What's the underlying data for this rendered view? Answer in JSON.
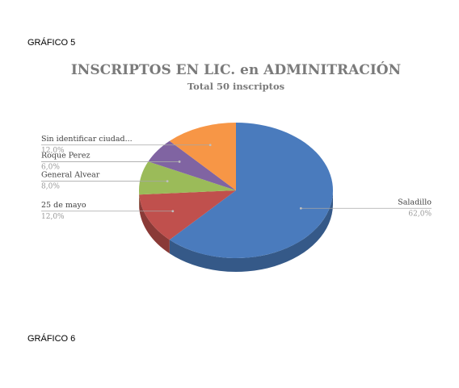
{
  "headings": {
    "grafico5": "GRÁFICO 5",
    "grafico6": "GRÁFICO 6"
  },
  "chart_data": {
    "type": "pie",
    "title": "INSCRIPTOS EN LIC. en ADMINITRACIÓN",
    "subtitle": "Total 50 inscriptos",
    "slices": [
      {
        "label": "Saladillo",
        "value": 62.0,
        "pct_text": "62,0%",
        "color": "#4a7bbd"
      },
      {
        "label": "25 de mayo",
        "value": 12.0,
        "pct_text": "12,0%",
        "color": "#c0504d"
      },
      {
        "label": "General Alvear",
        "value": 8.0,
        "pct_text": "8,0%",
        "color": "#9bbb59"
      },
      {
        "label": "Roque Perez",
        "value": 6.0,
        "pct_text": "6,0%",
        "color": "#8064a2"
      },
      {
        "label": "Sin identificar ciudad...",
        "value": 12.0,
        "pct_text": "12,0%",
        "color": "#f79646"
      }
    ]
  }
}
